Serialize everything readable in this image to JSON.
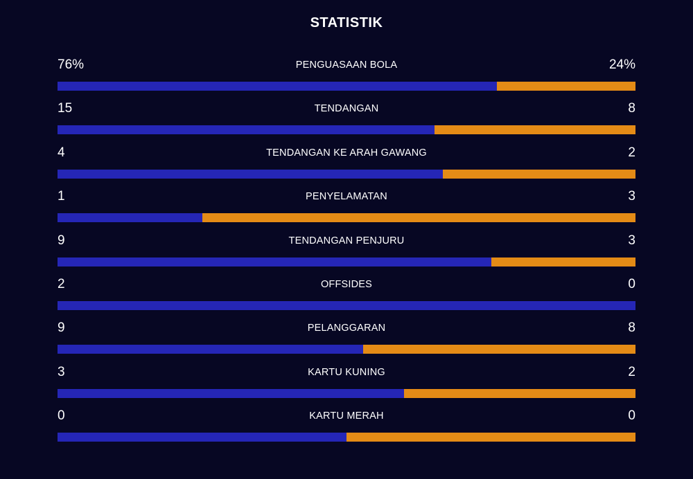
{
  "title": "STATISTIK",
  "colors": {
    "background": "#070723",
    "home": "#2526b6",
    "away": "#e48b16",
    "text": "#ffffff"
  },
  "stats": [
    {
      "label": "PENGUASAAN BOLA",
      "left": "76%",
      "right": "24%",
      "home_share": 0.76
    },
    {
      "label": "TENDANGAN",
      "left": "15",
      "right": "8",
      "home_share": 0.652
    },
    {
      "label": "TENDANGAN KE ARAH GAWANG",
      "left": "4",
      "right": "2",
      "home_share": 0.667
    },
    {
      "label": "PENYELAMATAN",
      "left": "1",
      "right": "3",
      "home_share": 0.25
    },
    {
      "label": "TENDANGAN PENJURU",
      "left": "9",
      "right": "3",
      "home_share": 0.75
    },
    {
      "label": "OFFSIDES",
      "left": "2",
      "right": "0",
      "home_share": 1.0
    },
    {
      "label": "PELANGGARAN",
      "left": "9",
      "right": "8",
      "home_share": 0.529
    },
    {
      "label": "KARTU KUNING",
      "left": "3",
      "right": "2",
      "home_share": 0.6
    },
    {
      "label": "KARTU MERAH",
      "left": "0",
      "right": "0",
      "home_share": 0.5
    }
  ]
}
